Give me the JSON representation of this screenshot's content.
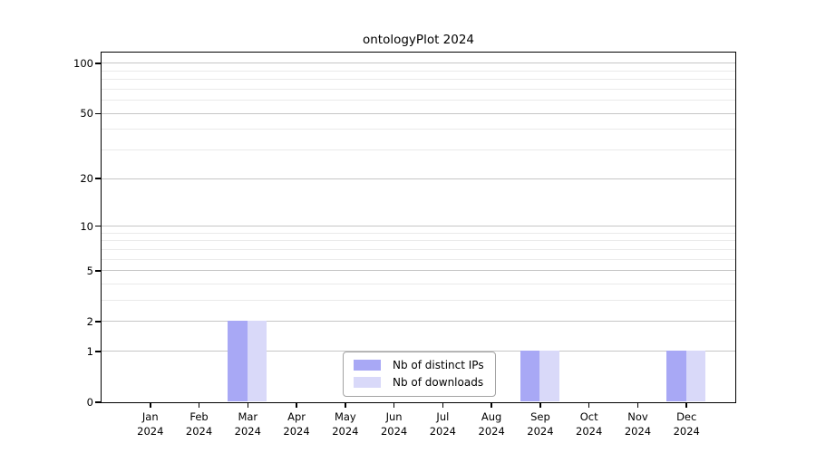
{
  "title": "ontologyPlot 2024",
  "colors": {
    "ips_bar": "#a8a8f5",
    "downloads_bar": "#d9d9f9",
    "grid_major": "#c6c6c6",
    "grid_minor": "#eaeaea",
    "axis": "#000000",
    "legend_border": "#a3a3a3",
    "background": "#ffffff"
  },
  "chart_data": {
    "type": "bar",
    "title": "ontologyPlot 2024",
    "categories": [
      "Jan 2024",
      "Feb 2024",
      "Mar 2024",
      "Apr 2024",
      "May 2024",
      "Jun 2024",
      "Jul 2024",
      "Aug 2024",
      "Sep 2024",
      "Oct 2024",
      "Nov 2024",
      "Dec 2024"
    ],
    "x_months": [
      "Jan",
      "Feb",
      "Mar",
      "Apr",
      "May",
      "Jun",
      "Jul",
      "Aug",
      "Sep",
      "Oct",
      "Nov",
      "Dec"
    ],
    "x_year": "2024",
    "series": [
      {
        "name": "Nb of distinct IPs",
        "color": "#a8a8f5",
        "values": [
          0,
          0,
          2,
          0,
          0,
          0,
          0,
          0,
          1,
          0,
          0,
          1
        ]
      },
      {
        "name": "Nb of downloads",
        "color": "#d9d9f9",
        "values": [
          0,
          0,
          2,
          0,
          0,
          0,
          0,
          0,
          1,
          0,
          0,
          1
        ]
      }
    ],
    "y_scale": "log1p",
    "y_ticks": [
      0,
      1,
      2,
      5,
      10,
      20,
      50,
      100
    ],
    "y_minor_ticks": [
      3,
      4,
      6,
      7,
      8,
      9,
      30,
      40,
      60,
      70,
      80,
      90
    ],
    "ylim": [
      0,
      116
    ],
    "xlabel": "",
    "ylabel": "",
    "grid": "horizontal",
    "legend_position": "inside-bottom-center"
  },
  "legend": {
    "items": [
      {
        "label": "Nb of distinct IPs"
      },
      {
        "label": "Nb of downloads"
      }
    ]
  }
}
